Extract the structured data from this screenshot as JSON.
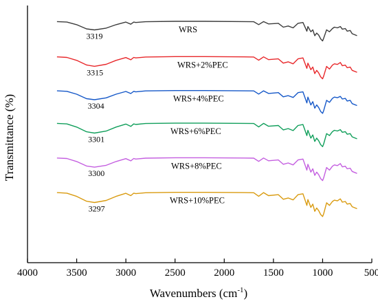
{
  "chart_data": {
    "type": "line",
    "title": "",
    "xlabel": "Wavenumbers (cm",
    "xlabel_sup": "-1",
    "xlabel_end": ")",
    "ylabel": "Transmittance (%)",
    "xlim": [
      4000,
      500
    ],
    "x_reversed": true,
    "x_ticks": [
      4000,
      3500,
      3000,
      2500,
      2000,
      1500,
      1000,
      500
    ],
    "x_tick_labels": [
      "4000",
      "3500",
      "3000",
      "2500",
      "2000",
      "1500",
      "1000",
      "500"
    ],
    "y_ticks_shown": false,
    "grid": false,
    "legend": "none (series labelled inline)",
    "x": [
      3700,
      3600,
      3500,
      3400,
      3319,
      3200,
      3100,
      3000,
      2950,
      2920,
      2900,
      2800,
      2500,
      2200,
      1800,
      1700,
      1650,
      1600,
      1550,
      1450,
      1400,
      1350,
      1300,
      1250,
      1200,
      1160,
      1150,
      1120,
      1100,
      1080,
      1060,
      1040,
      1020,
      1000,
      990,
      960,
      930,
      900,
      880,
      850,
      820,
      800,
      770,
      750,
      720,
      700,
      650
    ],
    "series": [
      {
        "name": "WRS",
        "color": "#3b3b3b",
        "peak": 3319,
        "baseline_offset": 0,
        "values": [
          0.2,
          0.6,
          2.6,
          5.8,
          6.6,
          5.2,
          2.6,
          0.6,
          2.2,
          0.6,
          0.9,
          0.3,
          0.0,
          0.0,
          0.2,
          0.3,
          2.5,
          0.2,
          2.0,
          1.5,
          4.5,
          3.6,
          5.0,
          1.5,
          0.9,
          7.5,
          4.0,
          8.0,
          6.5,
          11.0,
          9.0,
          10.5,
          13.5,
          15.0,
          13.0,
          6.5,
          8.0,
          5.5,
          4.5,
          5.0,
          4.0,
          6.0,
          5.5,
          7.5,
          7.0,
          9.5,
          11.0
        ]
      },
      {
        "name": "WRS+2%PEC",
        "color": "#e8272a",
        "peak": 3315,
        "baseline_offset": 52,
        "values": [
          0.2,
          0.6,
          2.9,
          6.4,
          7.4,
          5.9,
          2.9,
          0.7,
          2.4,
          0.6,
          1.0,
          0.3,
          0.0,
          0.0,
          0.2,
          0.3,
          2.8,
          0.2,
          2.3,
          1.7,
          5.0,
          4.0,
          5.5,
          1.7,
          1.0,
          9.0,
          5.0,
          10.0,
          8.0,
          13.0,
          10.5,
          12.5,
          15.5,
          17.0,
          15.0,
          7.5,
          9.5,
          6.5,
          5.5,
          6.0,
          4.5,
          7.0,
          6.5,
          8.5,
          8.0,
          10.5,
          12.0
        ]
      },
      {
        "name": "WRS+4%PEC",
        "color": "#1457c8",
        "peak": 3304,
        "baseline_offset": 102,
        "values": [
          0.2,
          0.6,
          2.8,
          6.2,
          7.0,
          5.6,
          2.8,
          0.7,
          2.3,
          0.6,
          1.0,
          0.3,
          0.0,
          0.0,
          0.2,
          0.3,
          2.7,
          0.2,
          2.2,
          1.6,
          4.8,
          3.9,
          5.3,
          1.6,
          1.0,
          9.5,
          5.0,
          11.0,
          8.5,
          13.5,
          11.0,
          13.0,
          16.0,
          17.5,
          15.5,
          7.5,
          9.0,
          6.0,
          5.0,
          5.5,
          4.5,
          6.5,
          6.0,
          8.0,
          7.5,
          10.0,
          11.5
        ]
      },
      {
        "name": "WRS+6%PEC",
        "color": "#0f9e5a",
        "peak": 3301,
        "baseline_offset": 150,
        "values": [
          0.2,
          0.6,
          3.0,
          6.6,
          7.6,
          6.1,
          3.0,
          0.7,
          2.5,
          0.6,
          1.0,
          0.3,
          0.0,
          0.0,
          0.2,
          0.3,
          2.9,
          0.2,
          2.4,
          1.8,
          5.2,
          4.2,
          5.7,
          1.8,
          1.1,
          9.5,
          5.5,
          11.5,
          9.0,
          14.0,
          11.5,
          13.5,
          16.5,
          18.0,
          16.0,
          8.0,
          9.5,
          6.5,
          5.5,
          6.0,
          5.0,
          7.0,
          6.5,
          8.5,
          8.0,
          10.5,
          12.0
        ]
      },
      {
        "name": "WRS+8%PEC",
        "color": "#c45ee0",
        "peak": 3300,
        "baseline_offset": 201,
        "values": [
          0.2,
          0.6,
          2.9,
          6.3,
          7.2,
          5.8,
          2.9,
          0.7,
          2.4,
          0.6,
          1.0,
          0.3,
          0.0,
          0.0,
          0.2,
          0.3,
          2.8,
          0.2,
          2.3,
          1.7,
          5.0,
          4.0,
          5.5,
          1.7,
          1.0,
          9.5,
          5.0,
          11.0,
          8.5,
          13.5,
          11.0,
          13.0,
          16.0,
          17.5,
          15.5,
          7.5,
          9.5,
          6.5,
          5.5,
          6.0,
          4.5,
          7.0,
          6.5,
          8.5,
          8.0,
          10.5,
          12.0
        ]
      },
      {
        "name": "WRS+10%PEC",
        "color": "#d99a0e",
        "peak": 3297,
        "baseline_offset": 252,
        "values": [
          0.2,
          0.6,
          3.1,
          6.8,
          7.8,
          6.2,
          3.1,
          0.7,
          2.5,
          0.6,
          1.0,
          0.3,
          0.0,
          0.0,
          0.2,
          0.3,
          3.0,
          0.2,
          2.5,
          1.8,
          5.3,
          4.3,
          5.8,
          1.8,
          1.1,
          10.0,
          5.5,
          11.5,
          9.0,
          14.5,
          12.0,
          14.0,
          17.0,
          18.5,
          16.5,
          8.0,
          10.0,
          7.0,
          6.0,
          6.5,
          5.0,
          7.5,
          7.0,
          9.0,
          8.5,
          11.0,
          12.5
        ]
      }
    ]
  }
}
